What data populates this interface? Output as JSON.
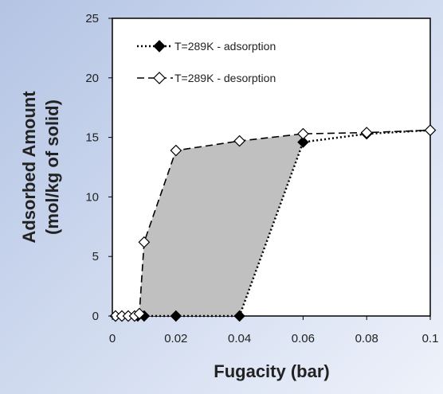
{
  "chart_data": {
    "type": "line",
    "xlabel": "Fugacity (bar)",
    "ylabel_line1": "Adsorbed Amount",
    "ylabel_line2": "(mol/kg of solid)",
    "xlim": [
      0,
      0.1
    ],
    "ylim": [
      0,
      25
    ],
    "x_ticks": [
      0,
      0.02,
      0.04,
      0.06,
      0.08,
      0.1
    ],
    "x_tick_labels": [
      "0",
      "0.02",
      "0.04",
      "0.06",
      "0.08",
      "0.1"
    ],
    "y_ticks": [
      0,
      5,
      10,
      15,
      20,
      25
    ],
    "y_tick_labels": [
      "0",
      "5",
      "10",
      "15",
      "20",
      "25"
    ],
    "grid": false,
    "legend_position": "top-left",
    "hysteresis_fill_color": "#c0c0c0",
    "series": [
      {
        "name": "T=289K - adsorption",
        "line_style": "dotted",
        "marker": "filled-diamond",
        "color": "#000000",
        "x": [
          0.001,
          0.008,
          0.01,
          0.02,
          0.04,
          0.06,
          0.08,
          0.1
        ],
        "y": [
          0,
          0,
          0,
          0,
          0,
          14.6,
          15.3,
          15.6
        ]
      },
      {
        "name": "T=289K - desorption",
        "line_style": "dashed",
        "marker": "open-diamond",
        "color": "#000000",
        "x": [
          0.001,
          0.003,
          0.005,
          0.007,
          0.0085,
          0.01,
          0.02,
          0.04,
          0.06,
          0.08,
          0.1
        ],
        "y": [
          0,
          0,
          0,
          0,
          0.2,
          6.2,
          13.9,
          14.7,
          15.3,
          15.4,
          15.6
        ]
      }
    ]
  }
}
